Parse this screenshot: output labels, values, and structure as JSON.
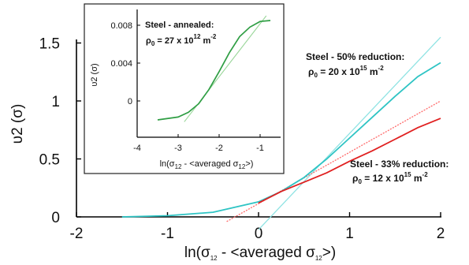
{
  "chart_data": [
    {
      "type": "line",
      "xlabel": "ln(σ12 - <averaged σ12>)",
      "ylabel": "υ2 (σ)",
      "xlim": [
        -2,
        2
      ],
      "ylim": [
        0,
        1.5
      ],
      "x_ticks": [
        "-2",
        "-1",
        "0",
        "1",
        "2"
      ],
      "y_ticks": [
        "0",
        "0.5",
        "1",
        "1.5"
      ],
      "grid": false,
      "series": [
        {
          "name": "Steel - 50% reduction",
          "color": "#2ec4c4",
          "fit_color": "#8fe3e3",
          "x": [
            -1.5,
            -1.0,
            -0.5,
            0.0,
            0.25,
            0.5,
            0.75,
            1.0,
            1.25,
            1.5,
            1.75,
            2.0
          ],
          "y": [
            0.0,
            0.01,
            0.04,
            0.13,
            0.22,
            0.34,
            0.5,
            0.68,
            0.86,
            1.04,
            1.21,
            1.33
          ],
          "fit_x": [
            0.0,
            2.0
          ],
          "fit_y": [
            -0.11,
            1.55
          ]
        },
        {
          "name": "Steel - 33% reduction",
          "color": "#e02020",
          "fit_color": "#ff6a6a",
          "x": [
            0.0,
            0.25,
            0.5,
            0.75,
            1.0,
            1.25,
            1.5,
            1.75,
            2.0
          ],
          "y": [
            0.12,
            0.22,
            0.3,
            0.38,
            0.48,
            0.57,
            0.67,
            0.77,
            0.85
          ],
          "fit_x": [
            -0.35,
            2.0
          ],
          "fit_y": [
            -0.04,
            1.0
          ]
        }
      ],
      "annotations": [
        {
          "line1": "Steel - 50% reduction:",
          "rho_value": "20 x 10",
          "rho_exp": "15",
          "rho_unit": "m",
          "rho_unit_exp": "-2"
        },
        {
          "line1": "Steel - 33% reduction:",
          "rho_value": "12 x 10",
          "rho_exp": "15",
          "rho_unit": "m",
          "rho_unit_exp": "-2"
        }
      ]
    },
    {
      "type": "line",
      "title": "Steel - annealed:",
      "xlabel": "ln(σ12 - <averaged σ12>)",
      "ylabel": "υ2 (σ)",
      "xlim": [
        -4,
        -0.5
      ],
      "ylim": [
        -0.0022,
        0.009
      ],
      "x_ticks": [
        "-4",
        "-3",
        "-2",
        "-1"
      ],
      "y_ticks": [
        "0",
        "0.004",
        "0.008"
      ],
      "series": [
        {
          "name": "Steel - annealed",
          "color": "#2f9e44",
          "fit_color": "#9ad69a",
          "x": [
            -3.5,
            -3.0,
            -2.75,
            -2.5,
            -2.25,
            -2.0,
            -1.75,
            -1.5,
            -1.25,
            -1.0,
            -0.75
          ],
          "y": [
            -0.002,
            -0.0017,
            -0.0012,
            -0.0003,
            0.0012,
            0.0031,
            0.0051,
            0.0068,
            0.0078,
            0.0084,
            0.0085
          ],
          "fit_x": [
            -2.85,
            -0.85
          ],
          "fit_y": [
            -0.0022,
            0.009
          ]
        }
      ],
      "annotation": {
        "rho_value": "27 x 10",
        "rho_exp": "12",
        "rho_unit": "m",
        "rho_unit_exp": "-2"
      }
    }
  ]
}
